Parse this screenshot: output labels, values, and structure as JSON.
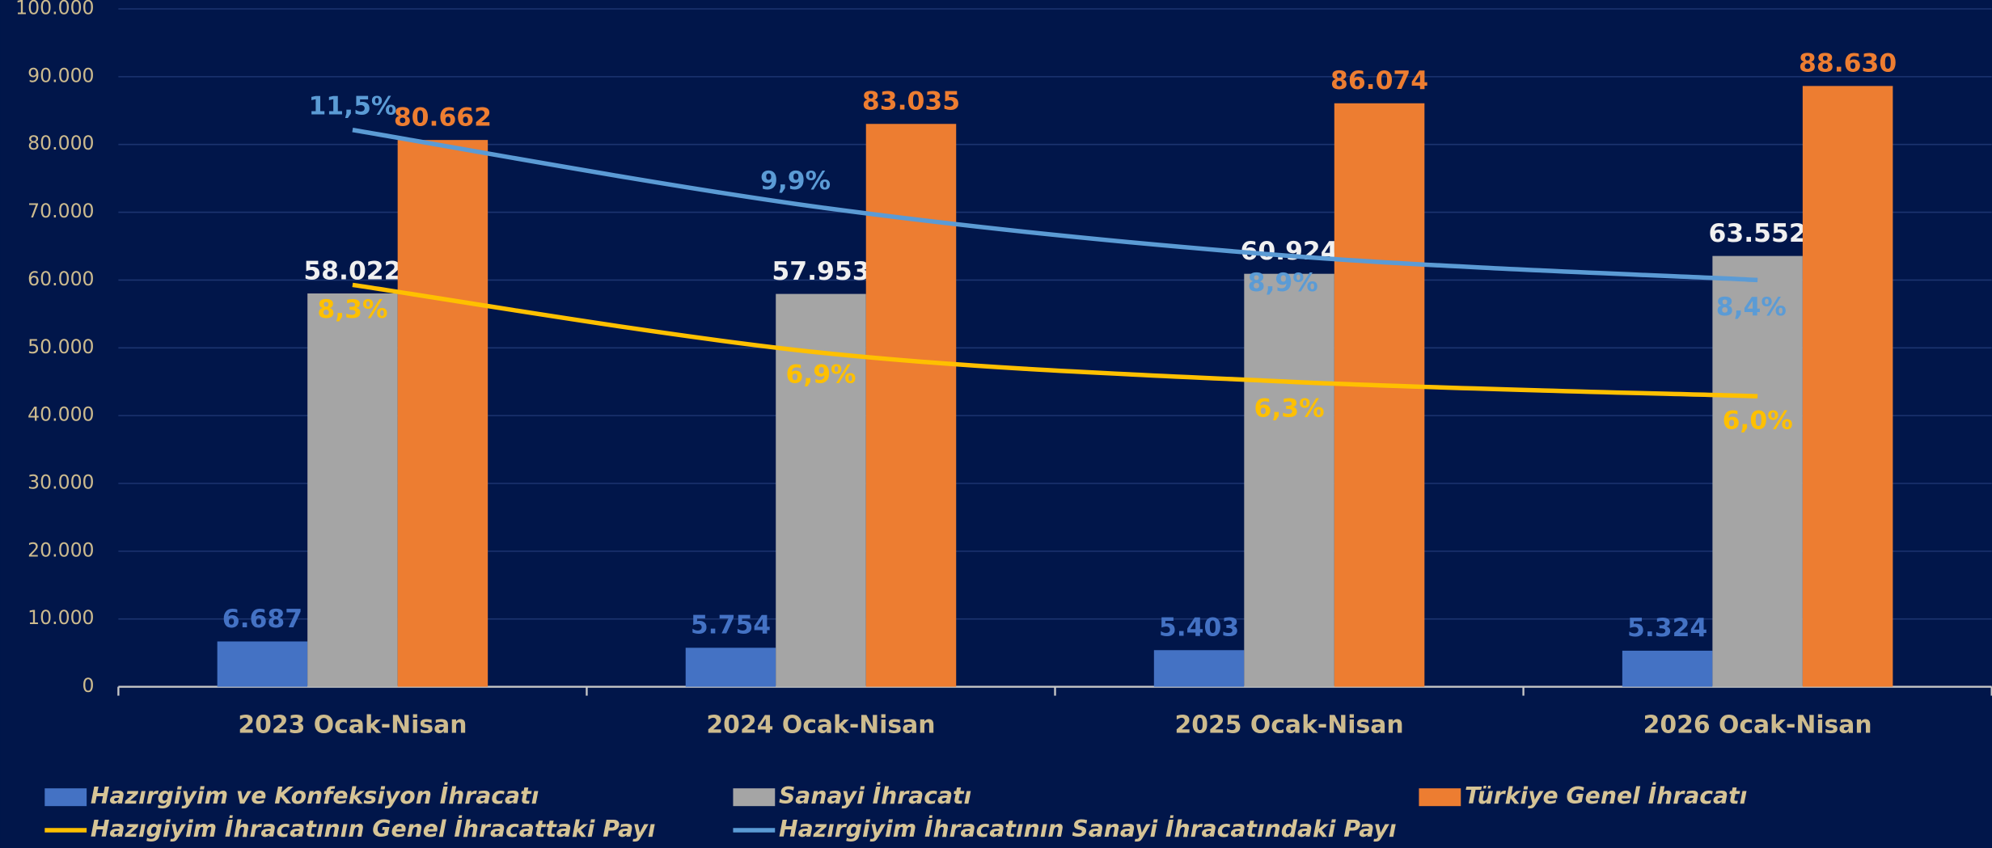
{
  "chart_data": {
    "type": "bar",
    "categories": [
      "2023 Ocak-Nisan",
      "2024 Ocak-Nisan",
      "2025 Ocak-Nisan",
      "2026 Ocak-Nisan"
    ],
    "series": [
      {
        "name": "Hazırgiyim ve Konfeksiyon İhracatı",
        "color": "#4472c4",
        "values": [
          6687,
          5754,
          5403,
          5324
        ],
        "value_labels": [
          "6.687",
          "5.754",
          "5.403",
          "5.324"
        ]
      },
      {
        "name": "Sanayi İhracatı",
        "color": "#a5a5a5",
        "values": [
          58022,
          57953,
          60924,
          63552
        ],
        "value_labels": [
          "58.022",
          "57.953",
          "60.924",
          "63.552"
        ]
      },
      {
        "name": "Türkiye Genel İhracatı",
        "color": "#ed7d31",
        "values": [
          80662,
          83035,
          86074,
          88630
        ],
        "value_labels": [
          "80.662",
          "83.035",
          "86.074",
          "88.630"
        ]
      },
      {
        "name": "Hazıgiyim İhracatının Genel İhracattaki Payı",
        "type": "line",
        "axis": "y2",
        "color": "#ffc000",
        "values": [
          8.3,
          6.9,
          6.3,
          6.0
        ],
        "value_labels": [
          "8,3%",
          "6,9%",
          "6,3%",
          "6,0%"
        ]
      },
      {
        "name": "Hazırgiyim İhracatının Sanayi İhracatındaki Payı",
        "type": "line",
        "axis": "y2",
        "color": "#5b9bd5",
        "values": [
          11.5,
          9.9,
          8.9,
          8.4
        ],
        "value_labels": [
          "11,5%",
          "9,9%",
          "8,9%",
          "8,4%"
        ]
      }
    ],
    "ylim": [
      0,
      100000
    ],
    "yticks": [
      0,
      {
        "value": 10000,
        "label": "10.000"
      },
      {
        "value": 20000,
        "label": "20.000"
      },
      {
        "value": 30000,
        "label": "30.000"
      },
      {
        "value": 40000,
        "label": "40.000"
      },
      {
        "value": 50000,
        "label": "50.000"
      },
      {
        "value": 60000,
        "label": "60.000"
      },
      {
        "value": 70000,
        "label": "70.000"
      },
      {
        "value": 80000,
        "label": "80.000"
      },
      {
        "value": 90000,
        "label": "90.000"
      },
      {
        "value": 100000,
        "label": "100.000"
      }
    ],
    "y2lim": [
      0,
      14
    ],
    "grid": true
  }
}
